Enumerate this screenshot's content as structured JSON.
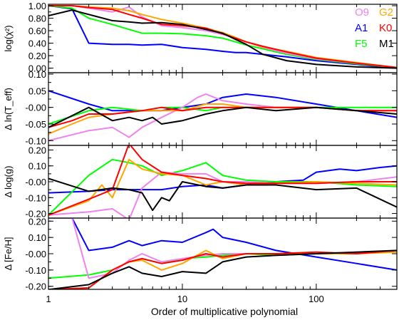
{
  "chart_data": {
    "type": "line",
    "xscale": "log",
    "xlim": [
      1,
      400
    ],
    "xlabel": "Order of multiplicative polynomial",
    "x_ticks": [
      1,
      10,
      100
    ],
    "x_tick_labels": [
      "1",
      "10",
      "100"
    ],
    "colors": {
      "O9": "#ee82ee",
      "G2": "#ffa500",
      "A1": "#0000ff",
      "K0": "#ff0000",
      "F5": "#00ff00",
      "M1": "#000000"
    },
    "legend": {
      "placement": "top-right",
      "entries": [
        {
          "label": "O9",
          "series": "O9"
        },
        {
          "label": "G2",
          "series": "G2"
        },
        {
          "label": "A1",
          "series": "A1"
        },
        {
          "label": "K0",
          "series": "K0"
        },
        {
          "label": "F5",
          "series": "F5"
        },
        {
          "label": "M1",
          "series": "M1"
        }
      ]
    },
    "panels": [
      {
        "id": "chi2",
        "ylabel": "log(χ²)",
        "ylim": [
          -0.05,
          1.0
        ],
        "yticks": [
          0.0,
          0.2,
          0.4,
          0.6,
          0.8,
          1.0
        ],
        "ytick_labels": [
          "0.00",
          "0.20",
          "0.40",
          "0.60",
          "0.80",
          "1.00"
        ],
        "series": [
          {
            "name": "A1",
            "x": [
              1,
              1.5,
              2,
              3,
              4,
              5,
              7,
              10,
              15,
              20,
              25,
              30,
              40,
              60,
              100,
              200,
              400
            ],
            "y": [
              1.0,
              0.95,
              0.4,
              0.38,
              0.38,
              0.37,
              0.38,
              0.33,
              0.3,
              0.27,
              0.25,
              0.25,
              0.22,
              0.18,
              0.12,
              0.06,
              0.0
            ]
          },
          {
            "name": "F5",
            "x": [
              1,
              1.5,
              2,
              3,
              4,
              5,
              7,
              10,
              15,
              20,
              25,
              30,
              40,
              60,
              100,
              200,
              400
            ],
            "y": [
              1.0,
              0.96,
              0.8,
              0.7,
              0.62,
              0.56,
              0.56,
              0.55,
              0.52,
              0.48,
              0.42,
              0.37,
              0.31,
              0.22,
              0.14,
              0.07,
              0.01
            ]
          },
          {
            "name": "O9",
            "x": [
              1,
              1.5,
              2,
              3,
              4,
              5,
              7,
              10,
              15,
              20,
              25,
              30,
              40,
              60,
              100,
              200,
              400
            ],
            "y": [
              1.0,
              1.0,
              0.96,
              0.9,
              0.98,
              0.82,
              0.68,
              0.65,
              0.6,
              0.54,
              0.48,
              0.42,
              0.33,
              0.24,
              0.15,
              0.08,
              0.01
            ]
          },
          {
            "name": "G2",
            "x": [
              1,
              1.5,
              2,
              3,
              4,
              5,
              7,
              10,
              15,
              20,
              25,
              30,
              40,
              60,
              100,
              200,
              400
            ],
            "y": [
              1.0,
              1.0,
              0.98,
              0.96,
              0.92,
              0.86,
              0.78,
              0.72,
              0.64,
              0.57,
              0.49,
              0.42,
              0.34,
              0.27,
              0.17,
              0.09,
              0.01
            ]
          },
          {
            "name": "K0",
            "x": [
              1,
              1.5,
              2,
              3,
              4,
              5,
              7,
              10,
              15,
              20,
              25,
              30,
              40,
              60,
              100,
              200,
              400
            ],
            "y": [
              1.0,
              1.0,
              0.97,
              0.94,
              0.86,
              0.8,
              0.7,
              0.68,
              0.64,
              0.55,
              0.48,
              0.42,
              0.35,
              0.26,
              0.16,
              0.08,
              0.01
            ]
          },
          {
            "name": "M1",
            "x": [
              1,
              1.5,
              2,
              3,
              4,
              5,
              7,
              10,
              15,
              20,
              25,
              30,
              40,
              60,
              100,
              200,
              400
            ],
            "y": [
              0.84,
              0.93,
              0.86,
              0.76,
              0.74,
              0.72,
              0.73,
              0.7,
              0.62,
              0.56,
              0.46,
              0.38,
              0.22,
              0.12,
              0.06,
              0.02,
              0.0
            ]
          }
        ]
      },
      {
        "id": "teff",
        "ylabel": "Δ ln(T_eff)",
        "ylim": [
          -0.11,
          0.1
        ],
        "yticks": [
          -0.1,
          -0.05,
          0.0,
          0.05,
          0.1
        ],
        "ytick_labels": [
          "-0.10",
          "-0.05",
          "-0.00",
          "0.05",
          "0.10"
        ],
        "series": [
          {
            "name": "A1",
            "x": [
              1,
              2,
              3,
              5,
              7,
              10,
              15,
              20,
              30,
              50,
              100,
              200,
              400
            ],
            "y": [
              0.05,
              0.01,
              -0.01,
              -0.01,
              -0.01,
              0.0,
              0.01,
              0.03,
              0.04,
              0.03,
              0.01,
              -0.01,
              -0.03
            ]
          },
          {
            "name": "F5",
            "x": [
              1,
              2,
              3,
              5,
              7,
              10,
              15,
              20,
              30,
              50,
              100,
              200,
              400
            ],
            "y": [
              -0.05,
              -0.01,
              0.0,
              -0.01,
              0.0,
              0.0,
              -0.01,
              0.0,
              0.0,
              0.0,
              0.0,
              0.0,
              0.0
            ]
          },
          {
            "name": "O9",
            "x": [
              1,
              2,
              3,
              4,
              5,
              7,
              10,
              13,
              15,
              20,
              30,
              50,
              100,
              200,
              400
            ],
            "y": [
              -0.1,
              -0.07,
              -0.06,
              -0.09,
              -0.06,
              -0.03,
              0.0,
              0.03,
              0.04,
              0.02,
              0.01,
              0.0,
              0.0,
              -0.01,
              -0.01
            ]
          },
          {
            "name": "G2",
            "x": [
              1,
              1.5,
              2,
              3,
              5,
              7,
              10,
              15,
              20,
              30,
              50,
              100,
              200,
              400
            ],
            "y": [
              -0.08,
              -0.05,
              -0.03,
              -0.02,
              -0.01,
              -0.01,
              -0.01,
              0.01,
              0.01,
              0.0,
              0.0,
              0.0,
              -0.01,
              -0.01
            ]
          },
          {
            "name": "K0",
            "x": [
              1,
              1.5,
              2,
              3,
              5,
              7,
              10,
              15,
              20,
              30,
              50,
              100,
              200,
              400
            ],
            "y": [
              -0.06,
              -0.04,
              -0.02,
              -0.02,
              -0.01,
              0.0,
              -0.01,
              0.0,
              0.0,
              0.0,
              0.0,
              0.0,
              -0.01,
              -0.01
            ]
          },
          {
            "name": "M1",
            "x": [
              1,
              2,
              3,
              4,
              5,
              6,
              7,
              10,
              15,
              20,
              30,
              50,
              100,
              200,
              400
            ],
            "y": [
              -0.06,
              0.0,
              -0.04,
              -0.03,
              -0.04,
              -0.03,
              -0.05,
              -0.04,
              -0.02,
              -0.01,
              0.0,
              -0.01,
              0.0,
              -0.01,
              -0.02
            ]
          }
        ]
      },
      {
        "id": "logg",
        "ylabel": "Δ log(g)",
        "ylim": [
          -0.22,
          0.22
        ],
        "yticks": [
          -0.2,
          -0.1,
          0.0,
          0.1,
          0.2
        ],
        "ytick_labels": [
          "-0.20",
          "-0.10",
          "-0.00",
          "0.10",
          "0.20"
        ],
        "series": [
          {
            "name": "A1",
            "x": [
              1,
              2,
              3,
              5,
              7,
              10,
              15,
              20,
              30,
              50,
              80,
              100,
              150,
              200,
              300,
              400
            ],
            "y": [
              -0.07,
              -0.06,
              -0.05,
              -0.05,
              -0.05,
              -0.03,
              -0.02,
              -0.04,
              -0.02,
              0.0,
              0.01,
              0.06,
              0.08,
              0.07,
              0.09,
              0.1
            ]
          },
          {
            "name": "F5",
            "x": [
              1,
              2,
              3,
              4,
              5,
              7,
              10,
              15,
              20,
              30,
              50,
              100,
              200,
              400
            ],
            "y": [
              -0.21,
              0.04,
              0.14,
              0.12,
              0.1,
              0.04,
              0.07,
              0.12,
              0.04,
              0.01,
              0.0,
              0.0,
              -0.02,
              -0.03
            ]
          },
          {
            "name": "O9",
            "x": [
              1,
              2,
              3,
              4,
              5,
              7,
              10,
              15,
              20,
              30,
              50,
              100,
              200,
              400
            ],
            "y": [
              -0.21,
              -0.19,
              -0.17,
              -0.24,
              -0.04,
              0.06,
              0.05,
              0.05,
              0.0,
              0.0,
              -0.01,
              -0.01,
              0.0,
              0.03
            ]
          },
          {
            "name": "G2",
            "x": [
              1,
              2,
              2.5,
              3,
              4,
              5,
              7,
              10,
              15,
              20,
              30,
              50,
              100,
              200,
              400
            ],
            "y": [
              -0.21,
              -0.12,
              -0.02,
              -0.1,
              0.14,
              0.08,
              0.05,
              0.04,
              -0.02,
              0.0,
              -0.02,
              -0.01,
              0.0,
              -0.01,
              -0.02
            ]
          },
          {
            "name": "K0",
            "x": [
              1,
              2,
              3,
              4,
              5,
              7,
              10,
              15,
              20,
              30,
              50,
              100,
              200,
              400
            ],
            "y": [
              -0.21,
              -0.11,
              -0.05,
              0.24,
              0.14,
              0.06,
              0.04,
              0.02,
              0.0,
              -0.01,
              -0.01,
              -0.01,
              0.0,
              0.0
            ]
          },
          {
            "name": "M1",
            "x": [
              1,
              2,
              3,
              4,
              5,
              6,
              7,
              8,
              10,
              15,
              20,
              30,
              50,
              100,
              200,
              400
            ],
            "y": [
              0.02,
              -0.06,
              -0.04,
              -0.05,
              -0.07,
              -0.18,
              -0.1,
              -0.12,
              0.0,
              -0.03,
              -0.04,
              -0.02,
              -0.02,
              -0.05,
              -0.04,
              -0.16
            ]
          }
        ]
      },
      {
        "id": "feh",
        "ylabel": "Δ [Fe/H]",
        "ylim": [
          -0.21,
          0.21
        ],
        "yticks": [
          -0.2,
          -0.1,
          0.0,
          0.1,
          0.2
        ],
        "ytick_labels": [
          "-0.20",
          "-0.10",
          "-0.00",
          "0.10",
          "0.20"
        ],
        "series": [
          {
            "name": "A1",
            "x": [
              1,
              1.5,
              2,
              3,
              4,
              5,
              7,
              10,
              15,
              17,
              20,
              30,
              50,
              100,
              200,
              400
            ],
            "y": [
              0.22,
              0.22,
              0.02,
              0.04,
              0.08,
              0.05,
              0.08,
              0.07,
              0.13,
              0.15,
              0.1,
              0.07,
              0.02,
              -0.02,
              -0.06,
              -0.1
            ]
          },
          {
            "name": "F5",
            "x": [
              1,
              2,
              3,
              4,
              5,
              7,
              10,
              15,
              20,
              30,
              50,
              100,
              200,
              400
            ],
            "y": [
              -0.15,
              -0.13,
              -0.1,
              -0.05,
              -0.03,
              -0.06,
              -0.03,
              -0.02,
              -0.01,
              0.0,
              -0.01,
              0.0,
              0.0,
              0.02
            ]
          },
          {
            "name": "O9",
            "x": [
              1,
              1.5,
              2,
              3,
              4,
              5,
              7,
              10,
              15,
              20,
              30,
              50,
              100,
              200,
              400
            ],
            "y": [
              0.22,
              0.22,
              -0.15,
              -0.12,
              -0.04,
              0.0,
              -0.05,
              -0.03,
              -0.01,
              0.0,
              0.0,
              0.0,
              0.0,
              0.01,
              0.01
            ]
          },
          {
            "name": "G2",
            "x": [
              1,
              2,
              3,
              4,
              5,
              7,
              10,
              15,
              20,
              30,
              50,
              100,
              200,
              400
            ],
            "y": [
              -0.22,
              -0.21,
              -0.1,
              -0.05,
              -0.04,
              -0.1,
              -0.06,
              0.02,
              -0.03,
              0.0,
              0.0,
              0.0,
              0.0,
              0.01
            ]
          },
          {
            "name": "K0",
            "x": [
              1,
              2,
              3,
              4,
              5,
              7,
              10,
              15,
              20,
              30,
              50,
              100,
              200,
              400
            ],
            "y": [
              -0.22,
              -0.21,
              -0.1,
              -0.05,
              -0.03,
              -0.06,
              -0.04,
              0.0,
              -0.02,
              0.0,
              0.0,
              0.01,
              0.0,
              0.02
            ]
          },
          {
            "name": "M1",
            "x": [
              1,
              2,
              3,
              4,
              5,
              7,
              10,
              15,
              20,
              30,
              50,
              100,
              200,
              400
            ],
            "y": [
              -0.22,
              -0.19,
              -0.12,
              -0.08,
              -0.12,
              -0.14,
              -0.11,
              -0.12,
              -0.05,
              -0.02,
              -0.01,
              0.0,
              0.01,
              0.02
            ]
          }
        ]
      }
    ]
  }
}
